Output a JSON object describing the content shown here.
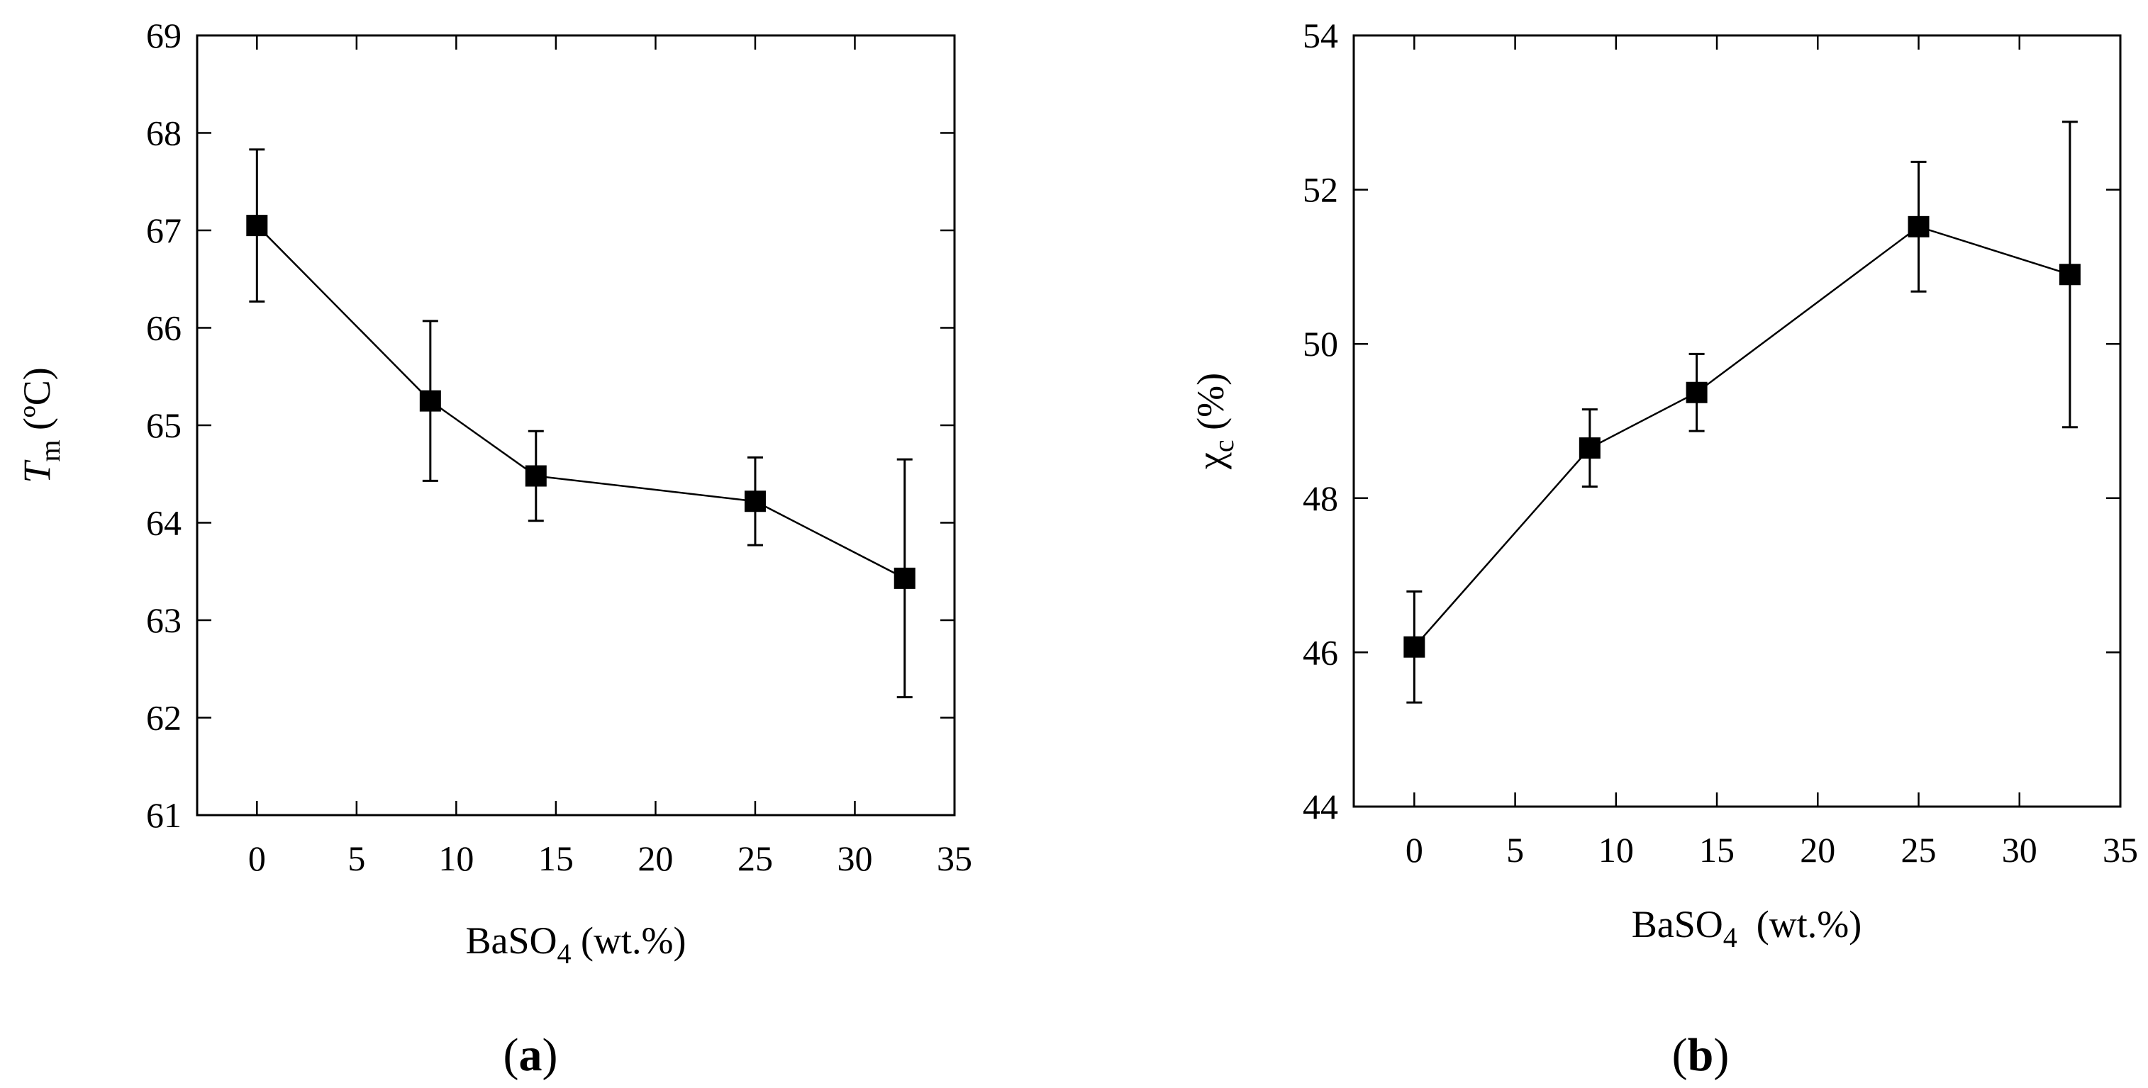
{
  "chart_data": [
    {
      "type": "line",
      "panel_label": "a",
      "x": [
        0,
        8.7,
        14,
        25,
        32.5
      ],
      "values": [
        67.05,
        65.25,
        64.48,
        64.22,
        63.43
      ],
      "error": [
        0.78,
        0.82,
        0.46,
        0.45,
        1.22
      ],
      "xlim": [
        -3,
        35
      ],
      "ylim": [
        61,
        69
      ],
      "xticks": [
        0,
        5,
        10,
        15,
        20,
        25,
        30,
        35
      ],
      "yticks": [
        61,
        62,
        63,
        64,
        65,
        66,
        67,
        68,
        69
      ],
      "xlabel": {
        "main": "BaSO",
        "sub": "4",
        "rest": " (wt.%)"
      },
      "ylabel": {
        "main": "T",
        "sub": "m",
        "rest": " (ºC)"
      },
      "marker": "square",
      "grid": false
    },
    {
      "type": "line",
      "panel_label": "b",
      "x": [
        0,
        8.7,
        14,
        25,
        32.5
      ],
      "values": [
        46.07,
        48.65,
        49.37,
        51.52,
        50.9
      ],
      "error": [
        0.72,
        0.5,
        0.5,
        0.84,
        1.98
      ],
      "xlim": [
        -3,
        35
      ],
      "ylim": [
        44,
        54
      ],
      "xticks": [
        0,
        5,
        10,
        15,
        20,
        25,
        30,
        35
      ],
      "yticks": [
        44,
        46,
        48,
        50,
        52,
        54
      ],
      "xlabel": {
        "main": "BaSO",
        "sub": "4",
        "rest": "  (wt.%)"
      },
      "ylabel": {
        "main": "χ",
        "sub": "c",
        "rest": " (%)"
      },
      "marker": "square",
      "grid": false
    }
  ]
}
